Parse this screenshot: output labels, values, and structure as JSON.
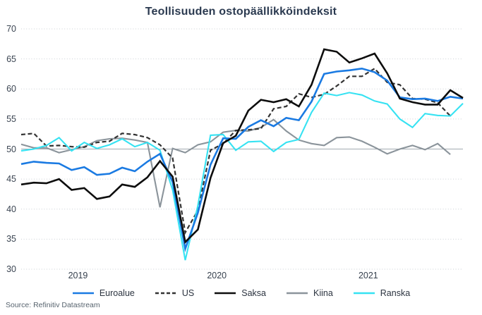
{
  "title": "Teollisuuden ostopäällikköindeksit",
  "source_note": "Source: Refinitiv Datastream",
  "colors": {
    "title_text": "#2b3a50",
    "tick_text": "#3b4552",
    "legend_text": "#2c3440",
    "source_text": "#57636e",
    "gridline_dotted": "#cbd0d5",
    "baseline_solid": "#a2aab1",
    "euroalue": "#1a7ae2",
    "us": "#333333",
    "saksa": "#0d0d0d",
    "kiina": "#8b949b",
    "ranska": "#36e2f2"
  },
  "chart_data": {
    "type": "line",
    "title": "Teollisuuden ostopäällikköindeksit",
    "xlabel": "",
    "ylabel": "",
    "ylim": [
      30,
      70
    ],
    "y_ticks": [
      30,
      35,
      40,
      45,
      50,
      55,
      60,
      65,
      70
    ],
    "baseline": 50,
    "grid": "dotted-horizontal",
    "legend_position": "bottom-center",
    "x_unit": "month",
    "x_tick_labels": [
      "2019",
      "2020",
      "2021"
    ],
    "x_months": [
      "2019-03",
      "2019-04",
      "2019-05",
      "2019-06",
      "2019-07",
      "2019-08",
      "2019-09",
      "2019-10",
      "2019-11",
      "2019-12",
      "2020-01",
      "2020-02",
      "2020-03",
      "2020-04",
      "2020-05",
      "2020-06",
      "2020-07",
      "2020-08",
      "2020-09",
      "2020-10",
      "2020-11",
      "2020-12",
      "2021-01",
      "2021-02",
      "2021-03",
      "2021-04",
      "2021-05",
      "2021-06",
      "2021-07",
      "2021-08",
      "2021-09",
      "2021-10",
      "2021-11",
      "2021-12",
      "2022-01",
      "2022-02"
    ],
    "series": [
      {
        "name": "Euroalue",
        "color": "#1a7ae2",
        "style": "solid",
        "width": 2.6,
        "values": [
          47.5,
          47.9,
          47.7,
          47.6,
          46.5,
          47.0,
          45.7,
          45.9,
          46.9,
          46.3,
          47.9,
          49.2,
          44.5,
          33.4,
          39.4,
          47.4,
          51.8,
          51.7,
          53.7,
          54.8,
          53.8,
          55.2,
          54.8,
          57.9,
          62.5,
          62.9,
          63.1,
          63.4,
          62.8,
          61.4,
          58.6,
          58.3,
          58.4,
          58.0,
          58.7,
          58.4
        ]
      },
      {
        "name": "US",
        "color": "#333333",
        "style": "dashed",
        "width": 2.2,
        "values": [
          52.4,
          52.6,
          50.5,
          50.6,
          50.4,
          50.3,
          51.1,
          51.3,
          52.6,
          52.4,
          51.9,
          50.7,
          48.5,
          36.1,
          39.8,
          49.8,
          50.9,
          53.1,
          53.2,
          53.4,
          56.7,
          57.1,
          59.2,
          58.6,
          59.1,
          60.5,
          62.1,
          62.1,
          63.4,
          61.1,
          60.7,
          58.4,
          58.3,
          57.7,
          55.5
        ]
      },
      {
        "name": "Saksa",
        "color": "#0d0d0d",
        "style": "solid",
        "width": 2.6,
        "values": [
          44.1,
          44.4,
          44.3,
          45.0,
          43.2,
          43.5,
          41.7,
          42.1,
          44.1,
          43.7,
          45.3,
          48.0,
          45.4,
          34.5,
          36.6,
          45.2,
          51.0,
          52.2,
          56.4,
          58.2,
          57.8,
          58.3,
          57.1,
          60.7,
          66.6,
          66.2,
          64.4,
          65.1,
          65.9,
          62.6,
          58.4,
          57.8,
          57.4,
          57.4,
          59.8,
          58.5
        ]
      },
      {
        "name": "Kiina",
        "color": "#8b949b",
        "style": "solid",
        "width": 2.1,
        "values": [
          50.8,
          50.2,
          50.2,
          49.4,
          49.9,
          50.4,
          51.4,
          51.7,
          51.8,
          51.5,
          51.1,
          40.3,
          50.1,
          49.4,
          50.7,
          51.2,
          52.8,
          53.1,
          53.0,
          53.6,
          54.9,
          53.0,
          51.5,
          50.9,
          50.6,
          51.9,
          52.0,
          51.3,
          50.3,
          49.2,
          50.0,
          50.6,
          49.9,
          50.9,
          49.1
        ]
      },
      {
        "name": "Ranska",
        "color": "#36e2f2",
        "style": "solid",
        "width": 2.1,
        "values": [
          49.7,
          50.0,
          50.6,
          51.9,
          49.7,
          51.1,
          50.1,
          50.7,
          51.7,
          50.4,
          51.1,
          49.8,
          43.2,
          31.5,
          40.6,
          52.3,
          52.4,
          49.8,
          51.2,
          51.3,
          49.6,
          51.1,
          51.6,
          56.1,
          59.3,
          58.9,
          59.4,
          59.0,
          58.0,
          57.5,
          55.0,
          53.6,
          55.9,
          55.6,
          55.5,
          57.6
        ]
      }
    ]
  }
}
